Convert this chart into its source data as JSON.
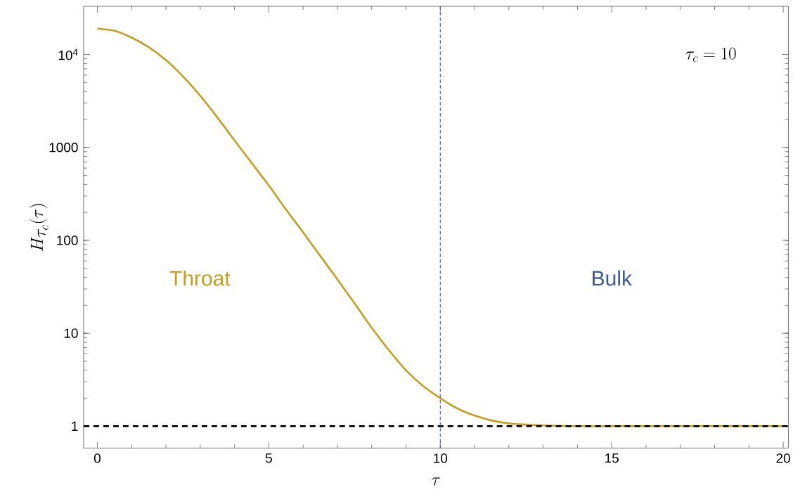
{
  "chart_data": {
    "type": "line",
    "xlabel": "\\tau",
    "ylabel": "H_{\\tau_c}(\\tau)",
    "x": [
      0,
      0.5,
      1,
      1.5,
      2,
      2.5,
      3,
      3.5,
      4,
      4.5,
      5,
      5.5,
      6,
      6.5,
      7,
      7.5,
      8,
      8.5,
      9,
      9.5,
      10,
      10.5,
      11,
      11.5,
      12,
      12.5,
      13,
      14,
      15,
      16,
      17,
      18,
      19,
      20
    ],
    "series": [
      {
        "color": "#c79d1c",
        "values": [
          19000,
          18000,
          15200,
          12000,
          8700,
          5800,
          3600,
          2100,
          1190,
          680,
          390,
          215,
          122,
          68,
          38,
          21,
          11.5,
          6.6,
          4.0,
          2.7,
          2.0,
          1.55,
          1.3,
          1.15,
          1.07,
          1.04,
          1.02,
          1.0,
          1.0,
          1.0,
          1.0,
          1.0,
          1.0,
          1.0
        ]
      }
    ],
    "xlim": [
      -0.4,
      20.15
    ],
    "ylim": [
      0.58,
      33000
    ],
    "log": "y",
    "xticks": [
      0,
      5,
      10,
      15,
      20
    ],
    "yticks": [
      1,
      10,
      100,
      1000,
      {
        "value": 10000,
        "label": "10$^{4}$"
      }
    ],
    "ref_lines": [
      {
        "axis": "y",
        "value": 1,
        "color": "#000000",
        "line_style": "dashed"
      },
      {
        "axis": "x",
        "value": 10,
        "color": "#3b5b9a",
        "line_style": "dashed"
      }
    ],
    "annotations": [
      "Throat",
      "Bulk",
      "\\tau_c = 10"
    ],
    "marker": "none",
    "line_style": "solid"
  }
}
